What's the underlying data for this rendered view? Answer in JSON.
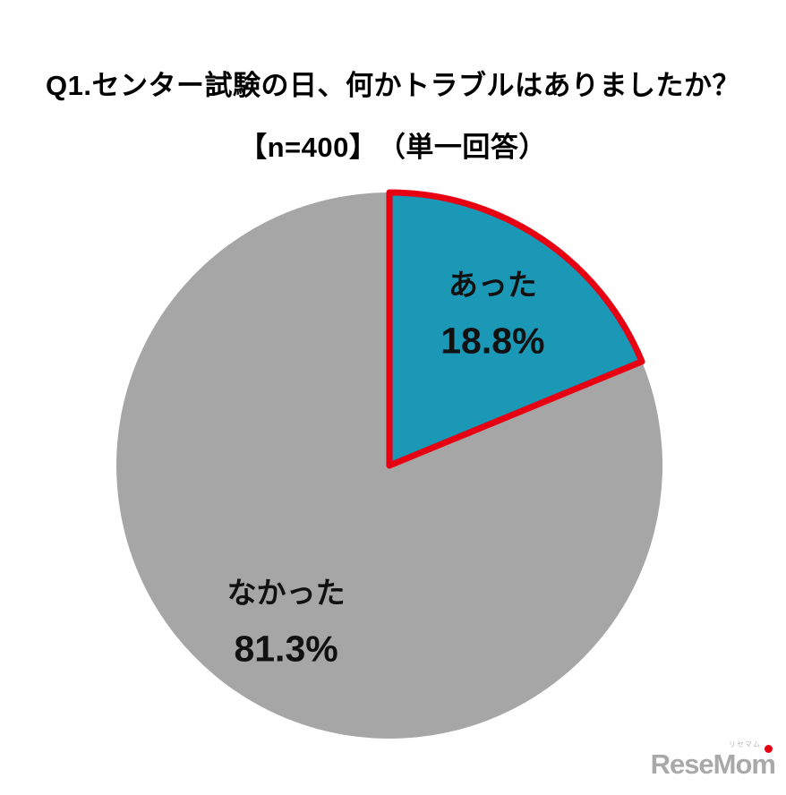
{
  "title": {
    "line1": "Q1.センター試験の日、何かトラブルはありましたか？",
    "line2": "【n=400】　（単一回答）"
  },
  "chart_data": {
    "type": "pie",
    "title": "Q1.センター試験の日、何かトラブルはありましたか？",
    "subtitle": "【n=400】（単一回答）",
    "n": 400,
    "slices": [
      {
        "label": "あった",
        "value": 18.8,
        "pct_label": "18.8%",
        "color": "#1A98B6",
        "outline_color": "#E60012"
      },
      {
        "label": "なかった",
        "value": 81.3,
        "pct_label": "81.3%",
        "color": "#A6A6A6",
        "outline_color": null
      }
    ],
    "start_angle_deg": 0,
    "direction": "clockwise",
    "legend": "none",
    "label_color": "#111111",
    "background": "#FFFFFF"
  },
  "logo": {
    "text": "ReseMom",
    "subtext": "リセマム",
    "dot_color": "#E60012"
  }
}
